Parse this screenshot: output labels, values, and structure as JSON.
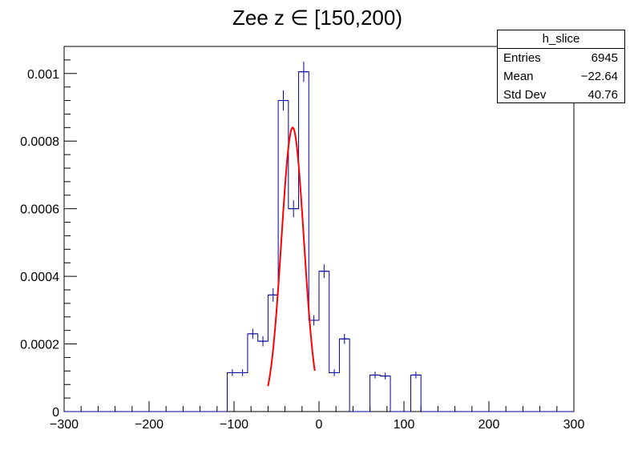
{
  "chart_data": {
    "type": "histogram",
    "title": "Zee z ∈ [150,200)",
    "xlabel": "",
    "ylabel": "",
    "xlim": [
      -300,
      300
    ],
    "ylim": [
      0,
      0.00108
    ],
    "x_ticks": [
      -300,
      -200,
      -100,
      0,
      100,
      200,
      300
    ],
    "x_tick_labels": [
      "−300",
      "−200",
      "−100",
      "0",
      "100",
      "200",
      "300"
    ],
    "y_ticks": [
      0,
      0.0002,
      0.0004,
      0.0006,
      0.0008,
      0.001
    ],
    "y_tick_labels": [
      "0",
      "0.0002",
      "0.0004",
      "0.0006",
      "0.0008",
      "0.001"
    ],
    "bin_width": 12,
    "bins": [
      {
        "x_low": -108,
        "value": 0.000115,
        "error": 1e-05
      },
      {
        "x_low": -96,
        "value": 0.000115,
        "error": 1e-05
      },
      {
        "x_low": -84,
        "value": 0.00023,
        "error": 1.5e-05
      },
      {
        "x_low": -72,
        "value": 0.000208,
        "error": 1.5e-05
      },
      {
        "x_low": -60,
        "value": 0.000345,
        "error": 2e-05
      },
      {
        "x_low": -48,
        "value": 0.00092,
        "error": 3e-05
      },
      {
        "x_low": -36,
        "value": 0.0006,
        "error": 2.5e-05
      },
      {
        "x_low": -24,
        "value": 0.001005,
        "error": 3e-05
      },
      {
        "x_low": -12,
        "value": 0.00027,
        "error": 1.5e-05
      },
      {
        "x_low": 0,
        "value": 0.000415,
        "error": 2e-05
      },
      {
        "x_low": 12,
        "value": 0.000115,
        "error": 1e-05
      },
      {
        "x_low": 24,
        "value": 0.000215,
        "error": 1.5e-05
      },
      {
        "x_low": 36,
        "value": 0,
        "error": 0
      },
      {
        "x_low": 48,
        "value": 0,
        "error": 0
      },
      {
        "x_low": 60,
        "value": 0.000108,
        "error": 1e-05
      },
      {
        "x_low": 72,
        "value": 0.000105,
        "error": 1e-05
      },
      {
        "x_low": 84,
        "value": 0,
        "error": 0
      },
      {
        "x_low": 96,
        "value": 0,
        "error": 0
      },
      {
        "x_low": 108,
        "value": 0.000108,
        "error": 1e-05
      }
    ],
    "fit": {
      "function": "gaus",
      "amplitude": 0.00084,
      "mean": -31,
      "sigma": 13.2,
      "x_range": [
        -60,
        -5
      ],
      "color": "#ff0000"
    },
    "histogram_color": "#000099",
    "grid": false,
    "stats_box": {
      "title": "h_slice",
      "rows": [
        {
          "label": "Entries",
          "value": "6945"
        },
        {
          "label": "Mean",
          "value": "−22.64"
        },
        {
          "label": "Std Dev",
          "value": "40.76"
        }
      ]
    }
  }
}
